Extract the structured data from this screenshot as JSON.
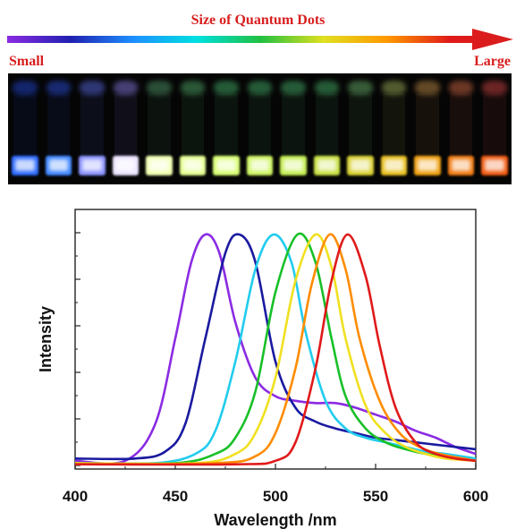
{
  "header": {
    "title": "Size of Quantum Dots",
    "small_label": "Small",
    "large_label": "Large"
  },
  "arrow_gradient": [
    "#8a2be2",
    "#2020b0",
    "#1e90ff",
    "#00e0e0",
    "#20c040",
    "#e0e020",
    "#ff9900",
    "#e01a1a",
    "#d81e1e"
  ],
  "vials": [
    {
      "cap": "#2040c0",
      "glow": "#2e6bff"
    },
    {
      "cap": "#2848c8",
      "glow": "#3f86ff"
    },
    {
      "cap": "#5060d0",
      "glow": "#8a92ff"
    },
    {
      "cap": "#7a70d0",
      "glow": "#ece4ff"
    },
    {
      "cap": "#4a8a60",
      "glow": "#f0ffb0"
    },
    {
      "cap": "#4a9a60",
      "glow": "#e4ff90"
    },
    {
      "cap": "#40a060",
      "glow": "#d8ff70"
    },
    {
      "cap": "#40a060",
      "glow": "#cdf560"
    },
    {
      "cap": "#40a060",
      "glow": "#c4ee50"
    },
    {
      "cap": "#40a060",
      "glow": "#c8e040"
    },
    {
      "cap": "#60a060",
      "glow": "#d8d030"
    },
    {
      "cap": "#90a050",
      "glow": "#e8c020"
    },
    {
      "cap": "#b08040",
      "glow": "#f0a010"
    },
    {
      "cap": "#c06040",
      "glow": "#f07a10"
    },
    {
      "cap": "#c04040",
      "glow": "#f05a10"
    }
  ],
  "chart_data": {
    "type": "line",
    "xlabel": "Wavelength /nm",
    "ylabel": "Intensity",
    "xlim": [
      400,
      600
    ],
    "ylim": [
      0,
      1.0
    ],
    "xticks": [
      "400",
      "450",
      "500",
      "550",
      "600"
    ],
    "yticks_labeled": false,
    "grid": false,
    "legend": "none",
    "series": [
      {
        "color": "#8b2be2",
        "x": [
          400,
          425,
          440,
          450,
          458,
          465,
          472,
          480,
          490,
          500,
          510,
          520,
          530,
          540,
          550,
          560,
          570,
          580,
          590,
          600
        ],
        "y": [
          0.02,
          0.02,
          0.18,
          0.55,
          0.88,
          1.0,
          0.92,
          0.62,
          0.38,
          0.3,
          0.28,
          0.27,
          0.27,
          0.25,
          0.22,
          0.19,
          0.15,
          0.12,
          0.08,
          0.05
        ]
      },
      {
        "color": "#1a1aa0",
        "x": [
          400,
          430,
          445,
          455,
          465,
          475,
          482,
          490,
          500,
          510,
          520,
          530,
          540,
          550,
          560,
          570,
          580,
          590,
          600
        ],
        "y": [
          0.03,
          0.03,
          0.06,
          0.18,
          0.55,
          0.92,
          1.0,
          0.88,
          0.45,
          0.25,
          0.19,
          0.16,
          0.14,
          0.12,
          0.11,
          0.1,
          0.09,
          0.08,
          0.07
        ]
      },
      {
        "color": "#22ccee",
        "x": [
          400,
          440,
          460,
          470,
          480,
          490,
          499,
          508,
          515,
          525,
          535,
          545,
          555,
          565,
          575,
          585,
          600
        ],
        "y": [
          0.01,
          0.01,
          0.05,
          0.15,
          0.45,
          0.85,
          1.0,
          0.88,
          0.58,
          0.28,
          0.16,
          0.12,
          0.1,
          0.08,
          0.06,
          0.05,
          0.03
        ]
      },
      {
        "color": "#18c028",
        "x": [
          400,
          450,
          470,
          480,
          490,
          500,
          511,
          520,
          528,
          535,
          545,
          555,
          565,
          575,
          585,
          600
        ],
        "y": [
          0.01,
          0.01,
          0.05,
          0.12,
          0.32,
          0.75,
          1.0,
          0.88,
          0.55,
          0.3,
          0.16,
          0.1,
          0.07,
          0.05,
          0.04,
          0.02
        ]
      },
      {
        "color": "#f0e020",
        "x": [
          400,
          460,
          480,
          490,
          500,
          510,
          520,
          528,
          535,
          545,
          555,
          565,
          575,
          585,
          600
        ],
        "y": [
          0.01,
          0.01,
          0.05,
          0.14,
          0.38,
          0.8,
          1.0,
          0.86,
          0.55,
          0.26,
          0.14,
          0.08,
          0.05,
          0.03,
          0.02
        ]
      },
      {
        "color": "#ff8c00",
        "x": [
          400,
          470,
          490,
          500,
          510,
          518,
          527,
          535,
          542,
          552,
          562,
          572,
          582,
          600
        ],
        "y": [
          0.005,
          0.01,
          0.04,
          0.14,
          0.42,
          0.78,
          1.0,
          0.85,
          0.55,
          0.28,
          0.14,
          0.08,
          0.05,
          0.02
        ]
      },
      {
        "color": "#e01a1a",
        "x": [
          400,
          480,
          500,
          510,
          520,
          528,
          536,
          545,
          552,
          560,
          570,
          580,
          590,
          600
        ],
        "y": [
          0.005,
          0.005,
          0.02,
          0.1,
          0.42,
          0.8,
          1.0,
          0.82,
          0.52,
          0.25,
          0.1,
          0.05,
          0.03,
          0.02
        ]
      }
    ]
  }
}
